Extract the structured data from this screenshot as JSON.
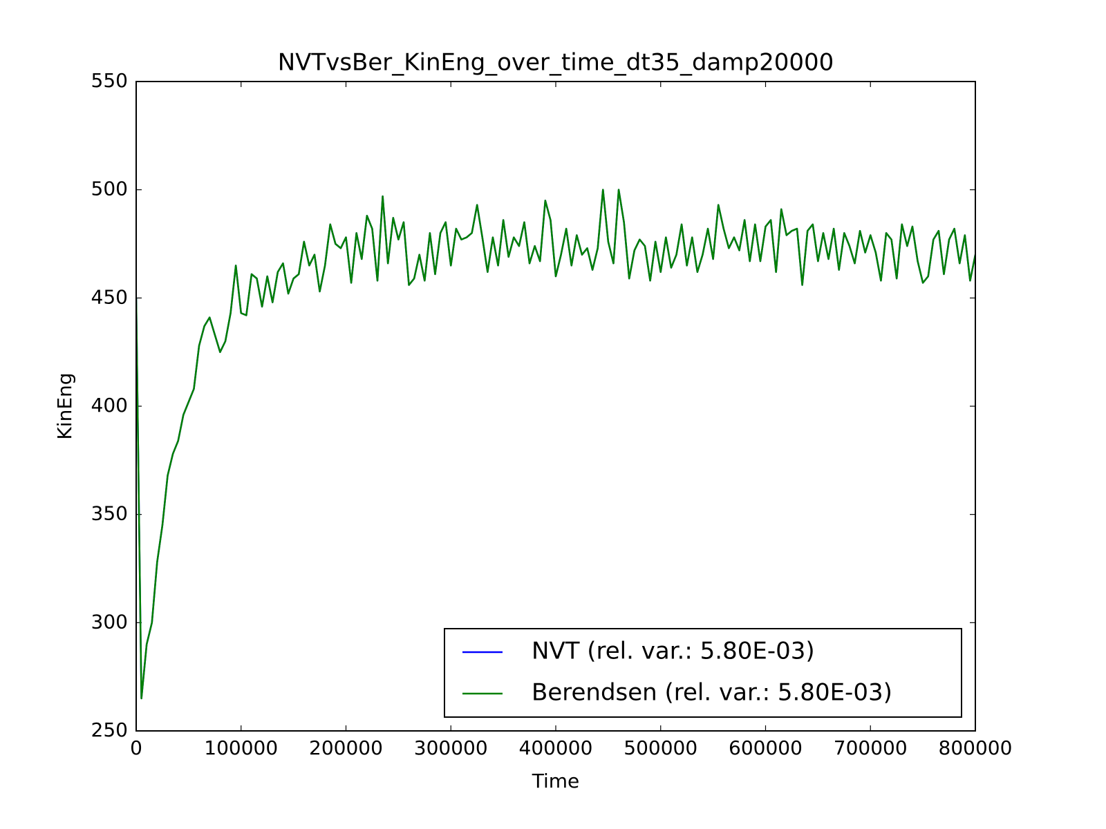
{
  "chart_data": {
    "type": "line",
    "title": "NVTvsBer_KinEng_over_time_dt35_damp20000",
    "xlabel": "Time",
    "ylabel": "KinEng",
    "xlim": [
      0,
      800000
    ],
    "xticks": [
      0,
      100000,
      200000,
      300000,
      400000,
      500000,
      600000,
      700000,
      800000
    ],
    "ylim": [
      250,
      550
    ],
    "yticks": [
      250,
      300,
      350,
      400,
      450,
      500,
      550
    ],
    "legend": "lower right",
    "x": [
      0,
      5000,
      10000,
      15000,
      20000,
      25000,
      30000,
      35000,
      40000,
      45000,
      50000,
      55000,
      60000,
      65000,
      70000,
      75000,
      80000,
      85000,
      90000,
      95000,
      100000,
      105000,
      110000,
      115000,
      120000,
      125000,
      130000,
      135000,
      140000,
      145000,
      150000,
      155000,
      160000,
      165000,
      170000,
      175000,
      180000,
      185000,
      190000,
      195000,
      200000,
      205000,
      210000,
      215000,
      220000,
      225000,
      230000,
      235000,
      240000,
      245000,
      250000,
      255000,
      260000,
      265000,
      270000,
      275000,
      280000,
      285000,
      290000,
      295000,
      300000,
      305000,
      310000,
      315000,
      320000,
      325000,
      330000,
      335000,
      340000,
      345000,
      350000,
      355000,
      360000,
      365000,
      370000,
      375000,
      380000,
      385000,
      390000,
      395000,
      400000,
      405000,
      410000,
      415000,
      420000,
      425000,
      430000,
      435000,
      440000,
      445000,
      450000,
      455000,
      460000,
      465000,
      470000,
      475000,
      480000,
      485000,
      490000,
      495000,
      500000,
      505000,
      510000,
      515000,
      520000,
      525000,
      530000,
      535000,
      540000,
      545000,
      550000,
      555000,
      560000,
      565000,
      570000,
      575000,
      580000,
      585000,
      590000,
      595000,
      600000,
      605000,
      610000,
      615000,
      620000,
      625000,
      630000,
      635000,
      640000,
      645000,
      650000,
      655000,
      660000,
      665000,
      670000,
      675000,
      680000,
      685000,
      690000,
      695000,
      700000,
      705000,
      710000,
      715000,
      720000,
      725000,
      730000,
      735000,
      740000,
      745000,
      750000,
      755000,
      760000,
      765000,
      770000,
      775000,
      780000,
      785000,
      790000,
      795000,
      800000
    ],
    "series": [
      {
        "name": "NVT (rel. var.: 5.80E-03)",
        "color": "#0000ff",
        "values": [
          450,
          265,
          290,
          300,
          328,
          345,
          368,
          378,
          384,
          396,
          402,
          408,
          428,
          437,
          441,
          433,
          425,
          430,
          443,
          465,
          443,
          442,
          461,
          459,
          446,
          460,
          448,
          462,
          466,
          452,
          459,
          461,
          476,
          465,
          470,
          453,
          465,
          484,
          475,
          473,
          478,
          457,
          480,
          468,
          488,
          482,
          458,
          497,
          466,
          487,
          477,
          485,
          456,
          459,
          470,
          458,
          480,
          461,
          480,
          485,
          465,
          482,
          477,
          478,
          480,
          493,
          478,
          462,
          478,
          465,
          486,
          469,
          478,
          474,
          485,
          466,
          474,
          467,
          495,
          486,
          460,
          470,
          482,
          465,
          479,
          470,
          473,
          463,
          473,
          500,
          476,
          466,
          500,
          485,
          459,
          472,
          477,
          474,
          458,
          476,
          462,
          478,
          464,
          470,
          484,
          465,
          478,
          462,
          470,
          482,
          468,
          493,
          482,
          473,
          478,
          472,
          486,
          467,
          484,
          467,
          483,
          486,
          462,
          491,
          479,
          481,
          482,
          456,
          481,
          484,
          467,
          480,
          468,
          482,
          463,
          480,
          474,
          466,
          481,
          471,
          479,
          471,
          458,
          480,
          477,
          459,
          484,
          474,
          483,
          467,
          457,
          460,
          477,
          481,
          461,
          477,
          482,
          466,
          479,
          458,
          470
        ]
      },
      {
        "name": "Berendsen (rel. var.: 5.80E-03)",
        "color": "#008000",
        "values": [
          450,
          265,
          290,
          300,
          328,
          345,
          368,
          378,
          384,
          396,
          402,
          408,
          428,
          437,
          441,
          433,
          425,
          430,
          443,
          465,
          443,
          442,
          461,
          459,
          446,
          460,
          448,
          462,
          466,
          452,
          459,
          461,
          476,
          465,
          470,
          453,
          465,
          484,
          475,
          473,
          478,
          457,
          480,
          468,
          488,
          482,
          458,
          497,
          466,
          487,
          477,
          485,
          456,
          459,
          470,
          458,
          480,
          461,
          480,
          485,
          465,
          482,
          477,
          478,
          480,
          493,
          478,
          462,
          478,
          465,
          486,
          469,
          478,
          474,
          485,
          466,
          474,
          467,
          495,
          486,
          460,
          470,
          482,
          465,
          479,
          470,
          473,
          463,
          473,
          500,
          476,
          466,
          500,
          485,
          459,
          472,
          477,
          474,
          458,
          476,
          462,
          478,
          464,
          470,
          484,
          465,
          478,
          462,
          470,
          482,
          468,
          493,
          482,
          473,
          478,
          472,
          486,
          467,
          484,
          467,
          483,
          486,
          462,
          491,
          479,
          481,
          482,
          456,
          481,
          484,
          467,
          480,
          468,
          482,
          463,
          480,
          474,
          466,
          481,
          471,
          479,
          471,
          458,
          480,
          477,
          459,
          484,
          474,
          483,
          467,
          457,
          460,
          477,
          481,
          461,
          477,
          482,
          466,
          479,
          458,
          470
        ]
      }
    ]
  }
}
